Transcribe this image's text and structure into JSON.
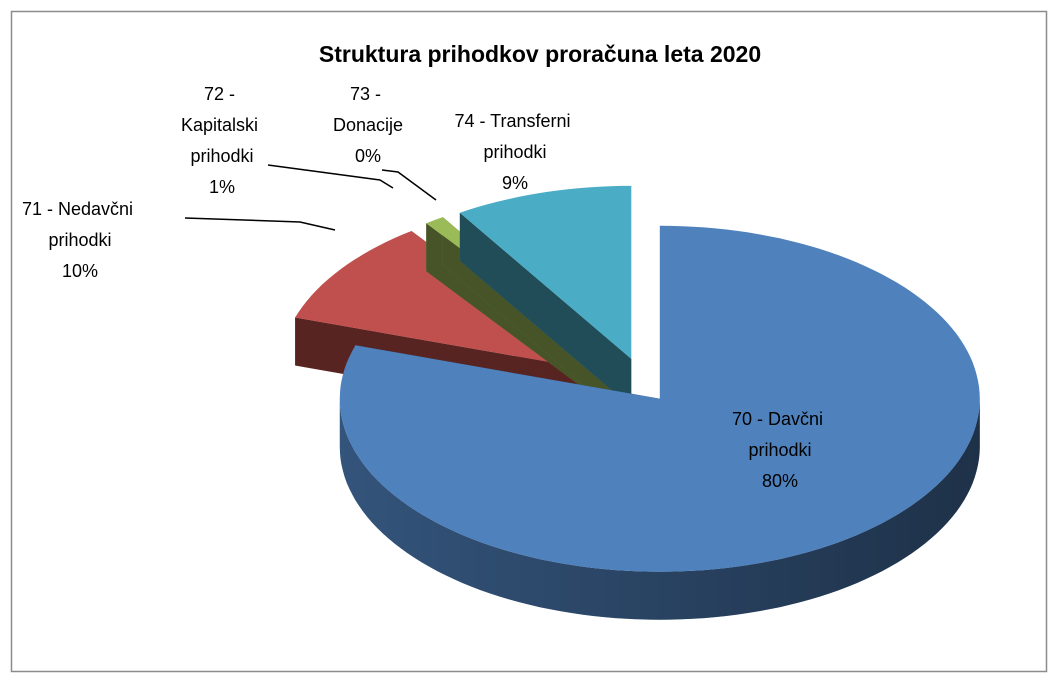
{
  "chart_data": {
    "type": "pie3d",
    "title": "Struktura prihodkov proračuna leta 2020",
    "categories": [
      "70 - Davčni prihodki",
      "71 - Nedavčni prihodki",
      "72 - Kapitalski prihodki",
      "73 - Donacije",
      "74 - Transferni prihodki"
    ],
    "values": [
      80,
      10,
      1,
      0,
      9
    ],
    "value_labels": [
      "80%",
      "10%",
      "1%",
      "0%",
      "9%"
    ],
    "colors": [
      "#4f81bd",
      "#c0504d",
      "#9bbb59",
      "#8064a2",
      "#4bacc6"
    ]
  }
}
